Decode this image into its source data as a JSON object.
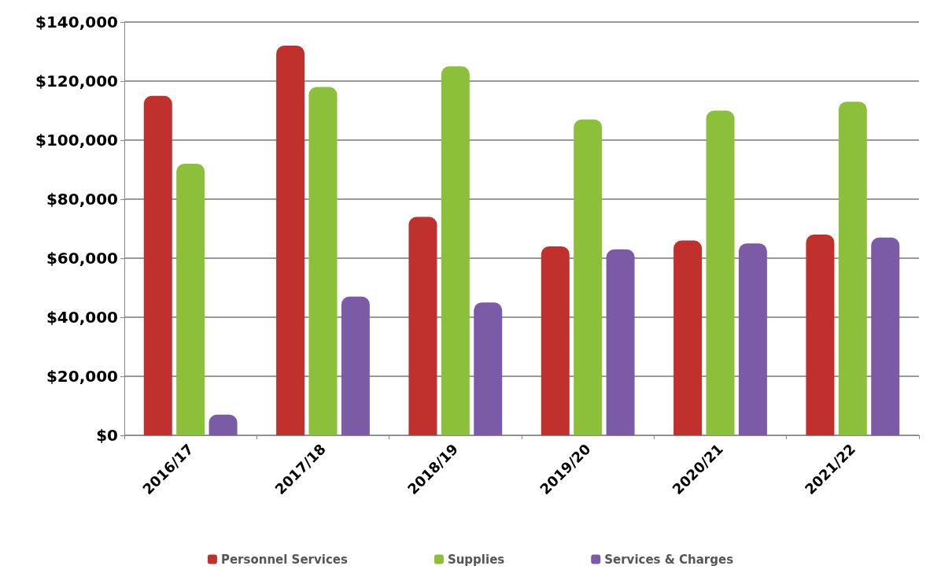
{
  "chart_data": {
    "type": "bar",
    "categories": [
      "2016/17",
      "2017/18",
      "2018/19",
      "2019/20",
      "2020/21",
      "2021/22"
    ],
    "series": [
      {
        "name": "Personnel Services",
        "color": "#c0302c",
        "values": [
          115000,
          132000,
          74000,
          64000,
          66000,
          68000
        ]
      },
      {
        "name": "Supplies",
        "color": "#8cbf3a",
        "values": [
          92000,
          118000,
          125000,
          107000,
          110000,
          113000
        ]
      },
      {
        "name": "Services & Charges",
        "color": "#7b5aa6",
        "values": [
          7000,
          47000,
          45000,
          63000,
          65000,
          67000
        ]
      }
    ],
    "ylim": [
      0,
      140000
    ],
    "yticks": [
      {
        "value": 0,
        "label": "$0"
      },
      {
        "value": 20000,
        "label": "$20,000"
      },
      {
        "value": 40000,
        "label": "$40,000"
      },
      {
        "value": 60000,
        "label": "$60,000"
      },
      {
        "value": 80000,
        "label": "$80,000"
      },
      {
        "value": 100000,
        "label": "$100,000"
      },
      {
        "value": 120000,
        "label": "$120,000"
      },
      {
        "value": 140000,
        "label": "$140,000"
      }
    ],
    "grid": "y",
    "legend": "bottom"
  }
}
